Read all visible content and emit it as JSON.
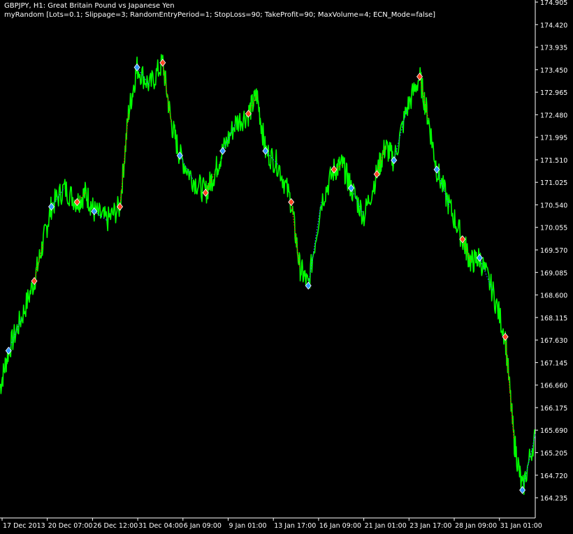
{
  "window": {
    "title": "GBPJPY, H1:  Great Britain Pound vs Japanese Yen",
    "expert": "myRandom [Lots=0.1; Slippage=3; RandomEntryPeriod=1; StopLoss=90; TakeProfit=90; MaxVolume=4; ECN_Mode=false]"
  },
  "colors": {
    "background": "#000000",
    "price_line": "#00ff00",
    "axis": "#ffffff",
    "buy_arrow": "#3399ff",
    "sell_arrow": "#ff4422",
    "trade_line_buy": "#3366ff",
    "trade_line_sell": "#ff3300"
  },
  "chart_data": {
    "type": "line",
    "symbol": "GBPJPY",
    "timeframe": "H1",
    "ylim": [
      163.8,
      174.95
    ],
    "y_ticks": [
      "174.905",
      "174.420",
      "173.935",
      "173.450",
      "172.965",
      "172.480",
      "171.995",
      "171.510",
      "171.025",
      "170.540",
      "170.055",
      "169.570",
      "169.085",
      "168.600",
      "168.115",
      "167.630",
      "167.145",
      "166.660",
      "166.175",
      "165.690",
      "165.205",
      "164.720",
      "164.235"
    ],
    "x_ticks": [
      "17 Dec 2013",
      "20 Dec 07:00",
      "26 Dec 12:00",
      "31 Dec 04:00",
      "6 Jan 09:00",
      "9 Jan 01:00",
      "13 Jan 17:00",
      "16 Jan 09:00",
      "21 Jan 01:00",
      "23 Jan 17:00",
      "28 Jan 09:00",
      "31 Jan 01:00"
    ],
    "series": [
      {
        "x": [
          0,
          0.2,
          0.5,
          0.8,
          1.0,
          1.2,
          1.5,
          1.8,
          2.0,
          2.2,
          2.5,
          2.8,
          3.0,
          3.2,
          3.5,
          3.8,
          4.0,
          4.2,
          4.5,
          4.8,
          5.0,
          5.2,
          5.5,
          5.8,
          6.0,
          6.2,
          6.5,
          6.8,
          7.0,
          7.2,
          7.5,
          7.8,
          8.0,
          8.2,
          8.5,
          8.8,
          9.0,
          9.2,
          9.5,
          9.8,
          10.0,
          10.2,
          10.5,
          10.8,
          11.0,
          11.2,
          11.5,
          11.8
        ],
        "y": [
          166.6,
          167.4,
          168.1,
          168.9,
          169.7,
          170.5,
          170.9,
          170.6,
          170.8,
          170.4,
          170.2,
          170.5,
          172.5,
          173.5,
          173.1,
          173.6,
          172.3,
          171.6,
          171.1,
          170.8,
          171.2,
          171.7,
          172.3,
          172.5,
          172.9,
          171.7,
          171.4,
          170.6,
          169.2,
          168.8,
          170.6,
          171.3,
          171.4,
          170.9,
          170.3,
          171.2,
          171.8,
          171.5,
          172.6,
          173.3,
          172.4,
          171.3,
          170.5,
          169.8,
          169.3,
          169.4,
          168.7,
          167.7
        ]
      }
    ],
    "x_end": [
      12.0,
      12.2,
      12.5
    ],
    "y_end": [
      165.5,
      164.4,
      165.6
    ]
  }
}
